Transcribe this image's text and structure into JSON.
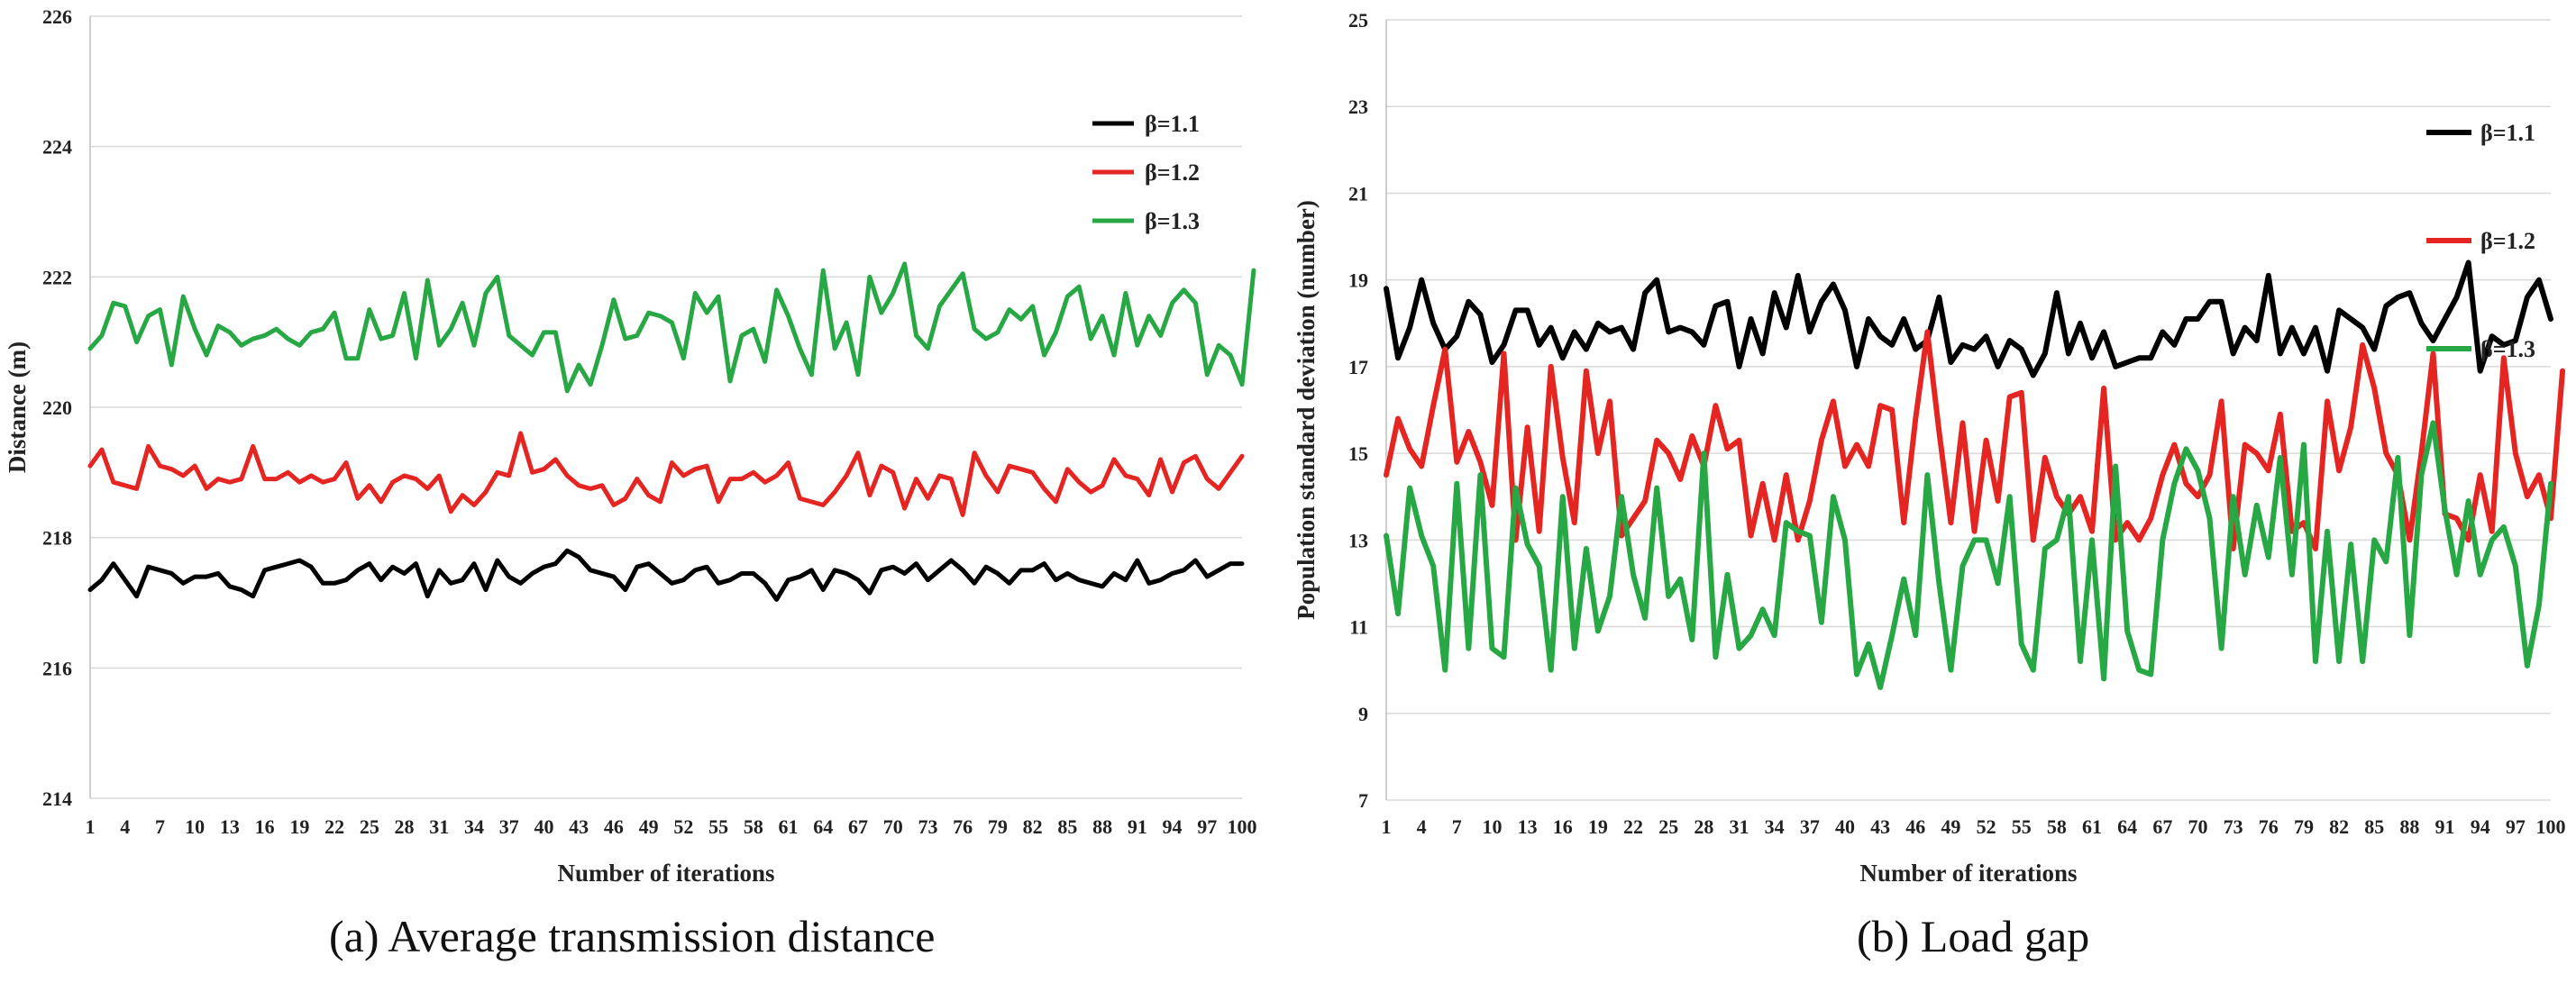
{
  "chart_data": [
    {
      "type": "line",
      "id": "a",
      "title": "",
      "caption": "(a) Average transmission distance",
      "xlabel": "Number of iterations",
      "ylabel": "Distance (m)",
      "ylim": [
        214,
        226
      ],
      "yticks": [
        214,
        216,
        218,
        220,
        222,
        224,
        226
      ],
      "xlim": [
        1,
        100
      ],
      "xticks": [
        1,
        4,
        7,
        10,
        13,
        16,
        19,
        22,
        25,
        28,
        31,
        34,
        37,
        40,
        43,
        46,
        49,
        52,
        55,
        58,
        61,
        64,
        67,
        70,
        73,
        76,
        79,
        82,
        85,
        88,
        91,
        94,
        97,
        100
      ],
      "grid": "horizontal",
      "legend_position": "top-right",
      "series": [
        {
          "name": "β=1.1",
          "color": "#000000",
          "values": [
            217.2,
            217.35,
            217.6,
            217.35,
            217.1,
            217.55,
            217.5,
            217.45,
            217.3,
            217.4,
            217.4,
            217.45,
            217.25,
            217.2,
            217.1,
            217.5,
            217.55,
            217.6,
            217.65,
            217.55,
            217.3,
            217.3,
            217.35,
            217.5,
            217.6,
            217.35,
            217.55,
            217.45,
            217.6,
            217.1,
            217.5,
            217.3,
            217.35,
            217.6,
            217.2,
            217.65,
            217.4,
            217.3,
            217.45,
            217.55,
            217.6,
            217.8,
            217.7,
            217.5,
            217.45,
            217.4,
            217.2,
            217.55,
            217.6,
            217.45,
            217.3,
            217.35,
            217.5,
            217.55,
            217.3,
            217.35,
            217.45,
            217.45,
            217.3,
            217.05,
            217.35,
            217.4,
            217.5,
            217.2,
            217.5,
            217.45,
            217.35,
            217.15,
            217.5,
            217.55,
            217.45,
            217.6,
            217.35,
            217.5,
            217.65,
            217.5,
            217.3,
            217.55,
            217.45,
            217.3,
            217.5,
            217.5,
            217.6,
            217.35,
            217.45,
            217.35,
            217.3,
            217.25,
            217.45,
            217.35,
            217.65,
            217.3,
            217.35,
            217.45,
            217.5,
            217.65,
            217.4,
            217.5,
            217.6,
            217.6
          ]
        },
        {
          "name": "β=1.2",
          "color": "#e52521",
          "values": [
            219.1,
            219.35,
            218.85,
            218.8,
            218.75,
            219.4,
            219.1,
            219.05,
            218.95,
            219.1,
            218.75,
            218.9,
            218.85,
            218.9,
            219.4,
            218.9,
            218.9,
            219.0,
            218.85,
            218.95,
            218.85,
            218.9,
            219.15,
            218.6,
            218.8,
            218.55,
            218.85,
            218.95,
            218.9,
            218.75,
            218.95,
            218.4,
            218.65,
            218.5,
            218.7,
            219.0,
            218.95,
            219.6,
            219.0,
            219.05,
            219.2,
            218.95,
            218.8,
            218.75,
            218.8,
            218.5,
            218.6,
            218.9,
            218.65,
            218.55,
            219.15,
            218.95,
            219.05,
            219.1,
            218.55,
            218.9,
            218.9,
            219.0,
            218.85,
            218.95,
            219.15,
            218.6,
            218.55,
            218.5,
            218.7,
            218.95,
            219.3,
            218.65,
            219.1,
            219.0,
            218.45,
            218.9,
            218.6,
            218.95,
            218.9,
            218.35,
            219.3,
            218.95,
            218.7,
            219.1,
            219.05,
            219.0,
            218.75,
            218.55,
            219.05,
            218.85,
            218.7,
            218.8,
            219.2,
            218.95,
            218.9,
            218.65,
            219.2,
            218.7,
            219.15,
            219.25,
            218.9,
            218.75,
            219.0,
            219.25
          ]
        },
        {
          "name": "β=1.3",
          "color": "#27a844",
          "values": [
            220.9,
            221.1,
            221.6,
            221.55,
            221.0,
            221.4,
            221.5,
            220.65,
            221.7,
            221.2,
            220.8,
            221.25,
            221.15,
            220.95,
            221.05,
            221.1,
            221.2,
            221.05,
            220.95,
            221.15,
            221.2,
            221.45,
            220.75,
            220.75,
            221.5,
            221.05,
            221.1,
            221.75,
            220.75,
            221.95,
            220.95,
            221.2,
            221.6,
            220.95,
            221.75,
            222.0,
            221.1,
            220.95,
            220.8,
            221.15,
            221.15,
            220.25,
            220.65,
            220.35,
            220.95,
            221.65,
            221.05,
            221.1,
            221.45,
            221.4,
            221.3,
            220.75,
            221.75,
            221.45,
            221.7,
            220.4,
            221.1,
            221.2,
            220.7,
            221.8,
            221.4,
            220.9,
            220.5,
            222.1,
            220.9,
            221.3,
            220.5,
            222.0,
            221.45,
            221.75,
            222.2,
            221.1,
            220.9,
            221.55,
            221.8,
            222.05,
            221.2,
            221.05,
            221.15,
            221.5,
            221.35,
            221.55,
            220.8,
            221.15,
            221.7,
            221.85,
            221.05,
            221.4,
            220.8,
            221.75,
            220.95,
            221.4,
            221.1,
            221.6,
            221.8,
            221.6,
            220.5,
            220.95,
            220.8,
            220.35,
            222.1
          ]
        }
      ]
    },
    {
      "type": "line",
      "id": "b",
      "title": "",
      "caption": "(b) Load gap",
      "xlabel": "Number of iterations",
      "ylabel": "Population standard deviation (number)",
      "ylim": [
        7,
        25
      ],
      "yticks": [
        7,
        9,
        11,
        13,
        15,
        17,
        19,
        21,
        23,
        25
      ],
      "xlim": [
        1,
        100
      ],
      "xticks": [
        1,
        4,
        7,
        10,
        13,
        16,
        19,
        22,
        25,
        28,
        31,
        34,
        37,
        40,
        43,
        46,
        49,
        52,
        55,
        58,
        61,
        64,
        67,
        70,
        73,
        76,
        79,
        82,
        85,
        88,
        91,
        94,
        97,
        100
      ],
      "grid": "horizontal",
      "legend_position": "top-right",
      "series": [
        {
          "name": "β=1.1",
          "color": "#000000",
          "values": [
            18.8,
            17.2,
            17.9,
            19.0,
            18.0,
            17.4,
            17.7,
            18.5,
            18.2,
            17.1,
            17.5,
            18.3,
            18.3,
            17.5,
            17.9,
            17.2,
            17.8,
            17.4,
            18.0,
            17.8,
            17.9,
            17.4,
            18.7,
            19.0,
            17.8,
            17.9,
            17.8,
            17.5,
            18.4,
            18.5,
            17.0,
            18.1,
            17.3,
            18.7,
            17.9,
            19.1,
            17.8,
            18.5,
            18.9,
            18.3,
            17.0,
            18.1,
            17.7,
            17.5,
            18.1,
            17.4,
            17.6,
            18.6,
            17.1,
            17.5,
            17.4,
            17.7,
            17.0,
            17.6,
            17.4,
            16.8,
            17.3,
            18.7,
            17.3,
            18.0,
            17.2,
            17.8,
            17.0,
            17.1,
            17.2,
            17.2,
            17.8,
            17.5,
            18.1,
            18.1,
            18.5,
            18.5,
            17.3,
            17.9,
            17.6,
            19.1,
            17.3,
            17.9,
            17.3,
            17.9,
            16.9,
            18.3,
            18.1,
            17.9,
            17.4,
            18.4,
            18.6,
            18.7,
            18.0,
            17.6,
            18.1,
            18.6,
            19.4,
            16.9,
            17.7,
            17.5,
            17.6,
            18.6,
            19.0,
            18.1
          ]
        },
        {
          "name": "β=1.2",
          "color": "#e52521",
          "values": [
            14.5,
            15.8,
            15.1,
            14.7,
            16.1,
            17.4,
            14.8,
            15.5,
            14.8,
            13.8,
            17.3,
            13.0,
            15.6,
            13.2,
            17.0,
            14.9,
            13.4,
            16.9,
            15.0,
            16.2,
            13.1,
            13.5,
            13.9,
            15.3,
            15.0,
            14.4,
            15.4,
            14.7,
            16.1,
            15.1,
            15.3,
            13.1,
            14.3,
            13.0,
            14.5,
            13.0,
            13.9,
            15.3,
            16.2,
            14.7,
            15.2,
            14.7,
            16.1,
            16.0,
            13.4,
            15.8,
            17.8,
            15.5,
            13.4,
            15.7,
            13.2,
            15.3,
            13.9,
            16.3,
            16.4,
            13.0,
            14.9,
            14.0,
            13.6,
            14.0,
            13.2,
            16.5,
            13.0,
            13.4,
            13.0,
            13.5,
            14.5,
            15.2,
            14.3,
            14.0,
            14.5,
            16.2,
            12.8,
            15.2,
            15.0,
            14.6,
            15.9,
            13.2,
            13.4,
            12.8,
            16.2,
            14.6,
            15.6,
            17.5,
            16.5,
            15.0,
            14.5,
            13.0,
            15.0,
            17.3,
            13.6,
            13.5,
            13.0,
            14.5,
            13.2,
            17.2,
            15.0,
            14.0,
            14.5,
            13.5,
            16.9
          ]
        },
        {
          "name": "β=1.3",
          "color": "#27a844",
          "values": [
            13.1,
            11.3,
            14.2,
            13.1,
            12.4,
            10.0,
            14.3,
            10.5,
            14.5,
            10.5,
            10.3,
            14.2,
            12.9,
            12.4,
            10.0,
            14.0,
            10.5,
            12.8,
            10.9,
            11.7,
            14.0,
            12.2,
            11.2,
            14.2,
            11.7,
            12.1,
            10.7,
            15.0,
            10.3,
            12.2,
            10.5,
            10.8,
            11.4,
            10.8,
            13.4,
            13.2,
            13.1,
            11.1,
            14.0,
            13.0,
            9.9,
            10.6,
            9.6,
            10.8,
            12.1,
            10.8,
            14.5,
            12.0,
            10.0,
            12.4,
            13.0,
            13.0,
            12.0,
            14.0,
            10.6,
            10.0,
            12.8,
            13.0,
            14.0,
            10.2,
            13.0,
            9.8,
            14.7,
            10.9,
            10.0,
            9.9,
            13.0,
            14.3,
            15.1,
            14.6,
            13.5,
            10.5,
            14.0,
            12.2,
            13.8,
            12.6,
            14.9,
            12.2,
            15.2,
            10.2,
            13.2,
            10.2,
            12.9,
            10.2,
            13.0,
            12.5,
            14.9,
            10.8,
            14.5,
            15.7,
            13.7,
            12.2,
            13.9,
            12.2,
            13.0,
            13.3,
            12.4,
            10.1,
            11.5,
            14.3
          ]
        }
      ]
    }
  ]
}
